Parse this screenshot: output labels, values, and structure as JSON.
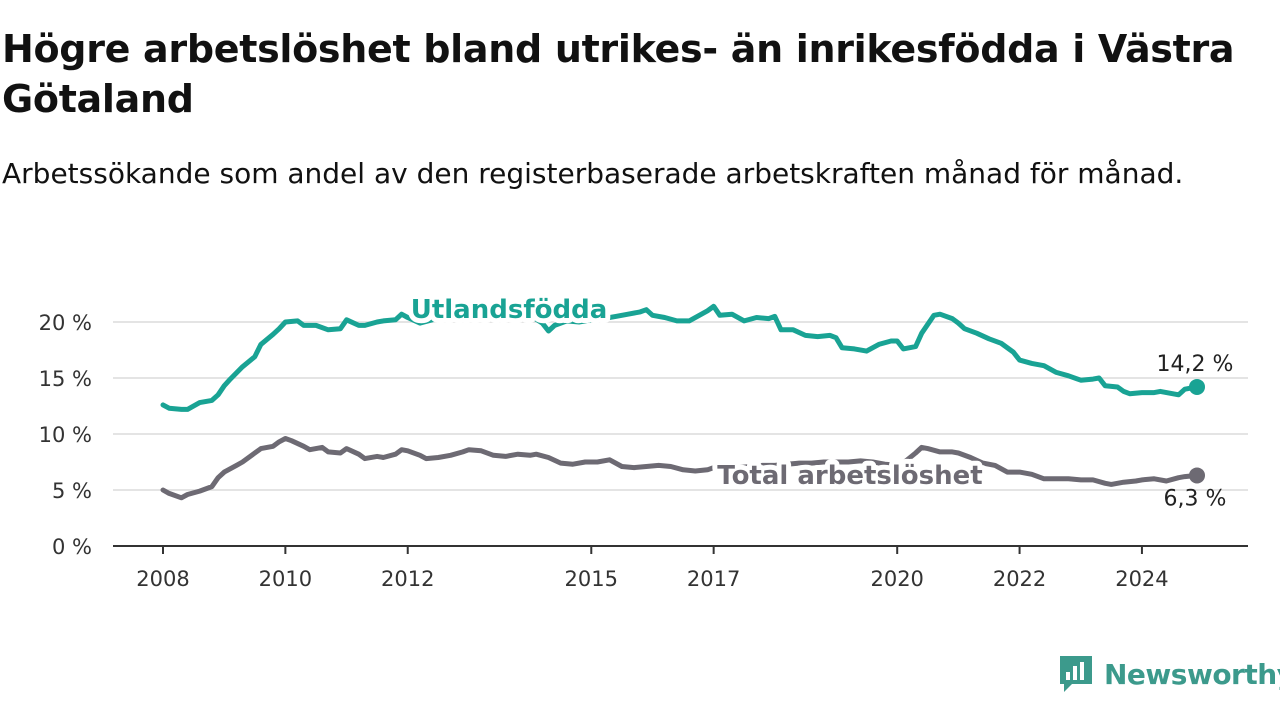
{
  "header": {
    "title": "Högre arbetslöshet bland utrikes- än inrikesfödda i Västra Götaland",
    "subtitle": "Arbetssökande som andel av den registerbaserade arbetskraften månad för månad."
  },
  "brand": {
    "name": "Newsworthy",
    "icon": "newsworthy-logo-icon",
    "color": "#3c9a8c"
  },
  "chart_data": {
    "type": "line",
    "title": "Högre arbetslöshet bland utrikes- än inrikesfödda i Västra Götaland",
    "subtitle": "Arbetssökande som andel av den registerbaserade arbetskraften månad för månad.",
    "xlabel": "",
    "ylabel": "",
    "xlim": [
      2008.0,
      2024.9
    ],
    "ylim": [
      0,
      20
    ],
    "grid": true,
    "legend": "inline",
    "y_ticks": [
      0,
      5,
      10,
      15,
      20
    ],
    "y_tick_labels": [
      "0 %",
      "5 %",
      "10 %",
      "15 %",
      "20 %"
    ],
    "x_ticks": [
      2008,
      2010,
      2012,
      2015,
      2017,
      2020,
      2022,
      2024
    ],
    "x_tick_labels": [
      "2008",
      "2010",
      "2012",
      "2015",
      "2017",
      "2020",
      "2022",
      "2024"
    ],
    "series": [
      {
        "name": "Utlandsfödda",
        "color": "#19a394",
        "end_label": "14,2 %",
        "points": [
          [
            2008.0,
            12.6
          ],
          [
            2008.1,
            12.3
          ],
          [
            2008.3,
            12.2
          ],
          [
            2008.4,
            12.2
          ],
          [
            2008.6,
            12.8
          ],
          [
            2008.8,
            13.0
          ],
          [
            2008.9,
            13.5
          ],
          [
            2009.0,
            14.3
          ],
          [
            2009.1,
            14.9
          ],
          [
            2009.3,
            16.0
          ],
          [
            2009.5,
            16.9
          ],
          [
            2009.6,
            18.0
          ],
          [
            2009.8,
            18.9
          ],
          [
            2009.9,
            19.4
          ],
          [
            2010.0,
            20.0
          ],
          [
            2010.2,
            20.1
          ],
          [
            2010.3,
            19.7
          ],
          [
            2010.5,
            19.7
          ],
          [
            2010.7,
            19.3
          ],
          [
            2010.9,
            19.4
          ],
          [
            2011.0,
            20.2
          ],
          [
            2011.2,
            19.7
          ],
          [
            2011.3,
            19.7
          ],
          [
            2011.5,
            20.0
          ],
          [
            2011.6,
            20.1
          ],
          [
            2011.8,
            20.2
          ],
          [
            2011.9,
            20.7
          ],
          [
            2012.0,
            20.4
          ],
          [
            2012.2,
            19.9
          ],
          [
            2012.4,
            20.2
          ],
          [
            2012.6,
            20.5
          ],
          [
            2012.8,
            20.3
          ],
          [
            2013.0,
            20.7
          ],
          [
            2013.2,
            20.9
          ],
          [
            2013.4,
            20.6
          ],
          [
            2013.6,
            20.2
          ],
          [
            2013.8,
            20.5
          ],
          [
            2014.0,
            20.6
          ],
          [
            2014.2,
            19.9
          ],
          [
            2014.3,
            19.2
          ],
          [
            2014.4,
            19.7
          ],
          [
            2014.6,
            20.1
          ],
          [
            2014.8,
            20.0
          ],
          [
            2015.0,
            20.2
          ],
          [
            2015.2,
            20.3
          ],
          [
            2015.4,
            20.5
          ],
          [
            2015.6,
            20.7
          ],
          [
            2015.8,
            20.9
          ],
          [
            2015.9,
            21.1
          ],
          [
            2016.0,
            20.6
          ],
          [
            2016.2,
            20.4
          ],
          [
            2016.4,
            20.1
          ],
          [
            2016.6,
            20.1
          ],
          [
            2016.8,
            20.7
          ],
          [
            2016.9,
            21.0
          ],
          [
            2017.0,
            21.4
          ],
          [
            2017.1,
            20.6
          ],
          [
            2017.3,
            20.7
          ],
          [
            2017.5,
            20.1
          ],
          [
            2017.7,
            20.4
          ],
          [
            2017.9,
            20.3
          ],
          [
            2018.0,
            20.5
          ],
          [
            2018.1,
            19.3
          ],
          [
            2018.3,
            19.3
          ],
          [
            2018.5,
            18.8
          ],
          [
            2018.7,
            18.7
          ],
          [
            2018.9,
            18.8
          ],
          [
            2019.0,
            18.6
          ],
          [
            2019.1,
            17.7
          ],
          [
            2019.3,
            17.6
          ],
          [
            2019.5,
            17.4
          ],
          [
            2019.7,
            18.0
          ],
          [
            2019.9,
            18.3
          ],
          [
            2020.0,
            18.3
          ],
          [
            2020.1,
            17.6
          ],
          [
            2020.3,
            17.8
          ],
          [
            2020.4,
            19.0
          ],
          [
            2020.6,
            20.6
          ],
          [
            2020.7,
            20.7
          ],
          [
            2020.9,
            20.3
          ],
          [
            2021.0,
            19.9
          ],
          [
            2021.1,
            19.4
          ],
          [
            2021.3,
            19.0
          ],
          [
            2021.5,
            18.5
          ],
          [
            2021.7,
            18.1
          ],
          [
            2021.9,
            17.3
          ],
          [
            2022.0,
            16.6
          ],
          [
            2022.2,
            16.3
          ],
          [
            2022.4,
            16.1
          ],
          [
            2022.6,
            15.5
          ],
          [
            2022.8,
            15.2
          ],
          [
            2023.0,
            14.8
          ],
          [
            2023.2,
            14.9
          ],
          [
            2023.3,
            15.0
          ],
          [
            2023.4,
            14.3
          ],
          [
            2023.6,
            14.2
          ],
          [
            2023.7,
            13.8
          ],
          [
            2023.8,
            13.6
          ],
          [
            2024.0,
            13.7
          ],
          [
            2024.2,
            13.7
          ],
          [
            2024.3,
            13.8
          ],
          [
            2024.5,
            13.6
          ],
          [
            2024.6,
            13.5
          ],
          [
            2024.7,
            14.0
          ],
          [
            2024.9,
            14.2
          ]
        ]
      },
      {
        "name": "Total arbetslöshet",
        "color": "#6d6a73",
        "end_label": "6,3 %",
        "points": [
          [
            2008.0,
            5.0
          ],
          [
            2008.1,
            4.7
          ],
          [
            2008.3,
            4.3
          ],
          [
            2008.4,
            4.6
          ],
          [
            2008.6,
            4.9
          ],
          [
            2008.8,
            5.3
          ],
          [
            2008.9,
            6.1
          ],
          [
            2009.0,
            6.6
          ],
          [
            2009.2,
            7.2
          ],
          [
            2009.3,
            7.5
          ],
          [
            2009.5,
            8.3
          ],
          [
            2009.6,
            8.7
          ],
          [
            2009.8,
            8.9
          ],
          [
            2009.9,
            9.3
          ],
          [
            2010.0,
            9.6
          ],
          [
            2010.1,
            9.4
          ],
          [
            2010.3,
            8.9
          ],
          [
            2010.4,
            8.6
          ],
          [
            2010.6,
            8.8
          ],
          [
            2010.7,
            8.4
          ],
          [
            2010.9,
            8.3
          ],
          [
            2011.0,
            8.7
          ],
          [
            2011.2,
            8.2
          ],
          [
            2011.3,
            7.8
          ],
          [
            2011.5,
            8.0
          ],
          [
            2011.6,
            7.9
          ],
          [
            2011.8,
            8.2
          ],
          [
            2011.9,
            8.6
          ],
          [
            2012.0,
            8.5
          ],
          [
            2012.2,
            8.1
          ],
          [
            2012.3,
            7.8
          ],
          [
            2012.5,
            7.9
          ],
          [
            2012.7,
            8.1
          ],
          [
            2012.9,
            8.4
          ],
          [
            2013.0,
            8.6
          ],
          [
            2013.2,
            8.5
          ],
          [
            2013.4,
            8.1
          ],
          [
            2013.6,
            8.0
          ],
          [
            2013.8,
            8.2
          ],
          [
            2014.0,
            8.1
          ],
          [
            2014.1,
            8.2
          ],
          [
            2014.3,
            7.9
          ],
          [
            2014.5,
            7.4
          ],
          [
            2014.7,
            7.3
          ],
          [
            2014.9,
            7.5
          ],
          [
            2015.1,
            7.5
          ],
          [
            2015.3,
            7.7
          ],
          [
            2015.5,
            7.1
          ],
          [
            2015.7,
            7.0
          ],
          [
            2015.9,
            7.1
          ],
          [
            2016.1,
            7.2
          ],
          [
            2016.3,
            7.1
          ],
          [
            2016.5,
            6.8
          ],
          [
            2016.7,
            6.7
          ],
          [
            2016.9,
            6.8
          ],
          [
            2017.0,
            7.0
          ],
          [
            2017.2,
            6.9
          ],
          [
            2017.4,
            7.0
          ],
          [
            2017.6,
            7.1
          ],
          [
            2017.8,
            7.2
          ],
          [
            2018.0,
            7.2
          ],
          [
            2018.2,
            7.3
          ],
          [
            2018.4,
            7.4
          ],
          [
            2018.6,
            7.4
          ],
          [
            2018.8,
            7.5
          ],
          [
            2019.0,
            7.5
          ],
          [
            2019.2,
            7.5
          ],
          [
            2019.4,
            7.6
          ],
          [
            2019.6,
            7.5
          ],
          [
            2019.8,
            7.3
          ],
          [
            2020.0,
            7.2
          ],
          [
            2020.1,
            7.4
          ],
          [
            2020.3,
            8.3
          ],
          [
            2020.4,
            8.8
          ],
          [
            2020.5,
            8.7
          ],
          [
            2020.7,
            8.4
          ],
          [
            2020.9,
            8.4
          ],
          [
            2021.0,
            8.3
          ],
          [
            2021.2,
            7.9
          ],
          [
            2021.4,
            7.4
          ],
          [
            2021.6,
            7.2
          ],
          [
            2021.8,
            6.6
          ],
          [
            2022.0,
            6.6
          ],
          [
            2022.2,
            6.4
          ],
          [
            2022.4,
            6.0
          ],
          [
            2022.6,
            6.0
          ],
          [
            2022.8,
            6.0
          ],
          [
            2023.0,
            5.9
          ],
          [
            2023.2,
            5.9
          ],
          [
            2023.4,
            5.6
          ],
          [
            2023.5,
            5.5
          ],
          [
            2023.7,
            5.7
          ],
          [
            2023.9,
            5.8
          ],
          [
            2024.0,
            5.9
          ],
          [
            2024.2,
            6.0
          ],
          [
            2024.4,
            5.8
          ],
          [
            2024.6,
            6.1
          ],
          [
            2024.7,
            6.2
          ],
          [
            2024.9,
            6.3
          ]
        ]
      }
    ]
  }
}
